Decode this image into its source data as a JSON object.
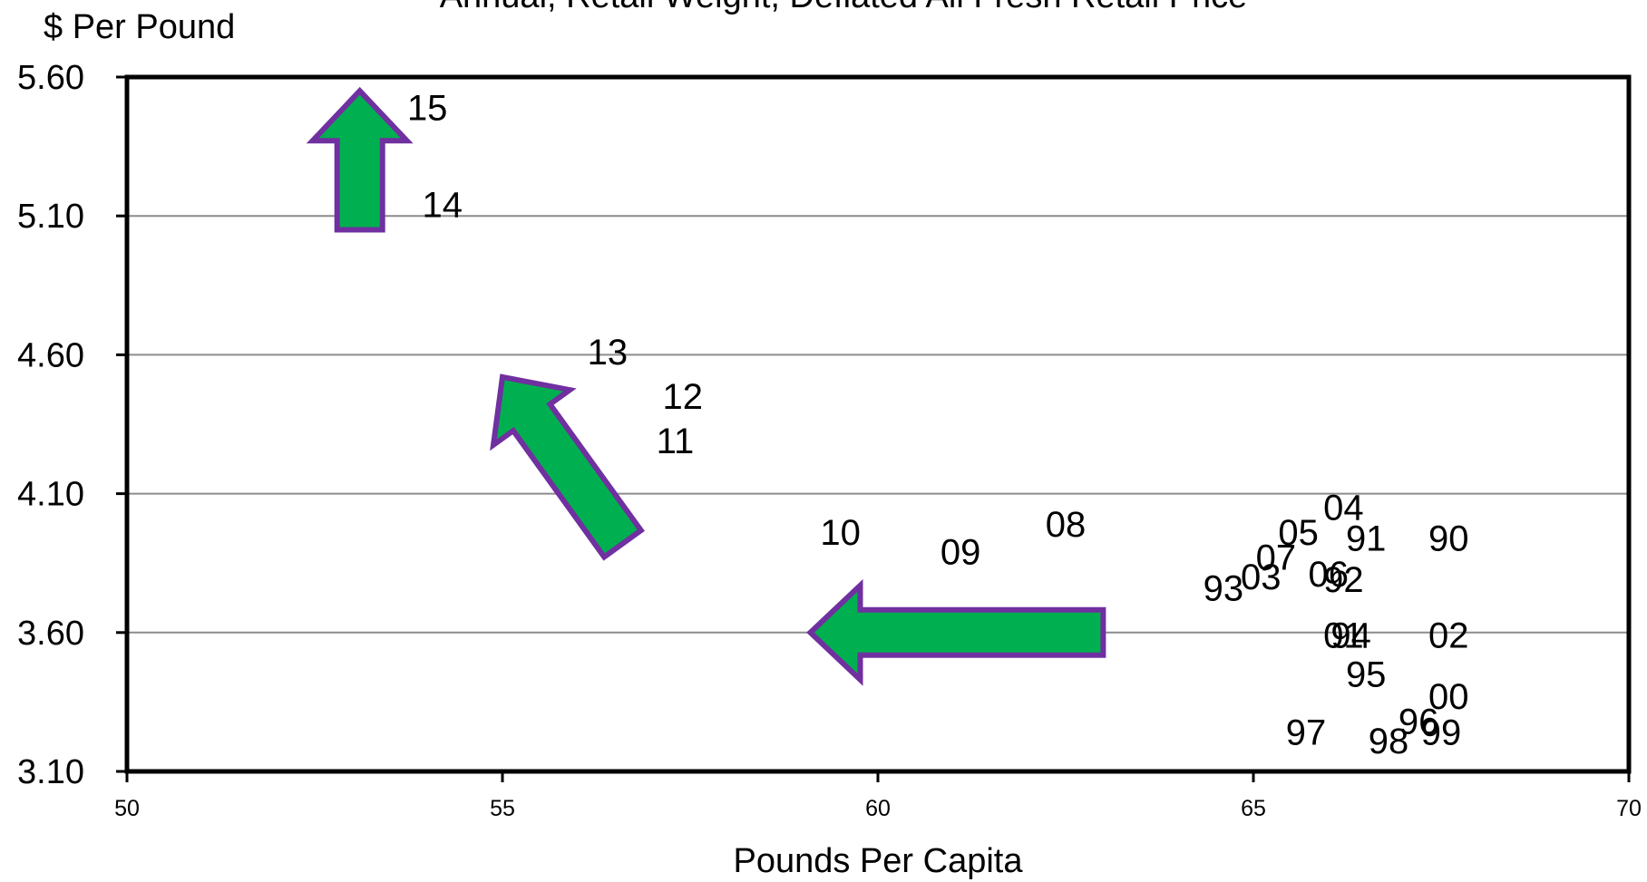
{
  "chart_data": {
    "type": "scatter",
    "title": "Annual, Retail Weight, Deflated All Fresh Retail Price",
    "xlabel": "Pounds Per Capita",
    "ylabel": "$ Per Pound",
    "xlim": [
      50,
      70
    ],
    "ylim": [
      3.1,
      5.6
    ],
    "x_ticks": [
      "50",
      "55",
      "60",
      "65",
      "70"
    ],
    "y_ticks": [
      "3.10",
      "3.60",
      "4.10",
      "4.60",
      "5.10",
      "5.60"
    ],
    "grid": "horizontal",
    "points": [
      {
        "label": "90",
        "x": 67.6,
        "y": 3.93
      },
      {
        "label": "91",
        "x": 66.5,
        "y": 3.93
      },
      {
        "label": "92",
        "x": 66.2,
        "y": 3.78
      },
      {
        "label": "93",
        "x": 64.6,
        "y": 3.75
      },
      {
        "label": "94",
        "x": 66.3,
        "y": 3.58
      },
      {
        "label": "95",
        "x": 66.5,
        "y": 3.44
      },
      {
        "label": "96",
        "x": 67.2,
        "y": 3.27
      },
      {
        "label": "97",
        "x": 65.7,
        "y": 3.23
      },
      {
        "label": "98",
        "x": 66.8,
        "y": 3.2
      },
      {
        "label": "99",
        "x": 67.5,
        "y": 3.23
      },
      {
        "label": "00",
        "x": 67.6,
        "y": 3.36
      },
      {
        "label": "01",
        "x": 66.2,
        "y": 3.58
      },
      {
        "label": "02",
        "x": 67.6,
        "y": 3.58
      },
      {
        "label": "03",
        "x": 65.1,
        "y": 3.79
      },
      {
        "label": "04",
        "x": 66.2,
        "y": 4.04
      },
      {
        "label": "05",
        "x": 65.6,
        "y": 3.95
      },
      {
        "label": "06",
        "x": 66.0,
        "y": 3.8
      },
      {
        "label": "07",
        "x": 65.3,
        "y": 3.86
      },
      {
        "label": "08",
        "x": 62.5,
        "y": 3.98
      },
      {
        "label": "09",
        "x": 61.1,
        "y": 3.88
      },
      {
        "label": "10",
        "x": 59.5,
        "y": 3.95
      },
      {
        "label": "11",
        "x": 57.3,
        "y": 4.28
      },
      {
        "label": "12",
        "x": 57.4,
        "y": 4.44
      },
      {
        "label": "13",
        "x": 56.4,
        "y": 4.6
      },
      {
        "label": "14",
        "x": 54.2,
        "y": 5.13
      },
      {
        "label": "15",
        "x": 54.0,
        "y": 5.48
      }
    ],
    "annotations": [
      {
        "type": "arrow",
        "from": [
          63.0,
          3.6
        ],
        "to": [
          59.1,
          3.6
        ],
        "color": "#00b050",
        "border": "#7030a0"
      },
      {
        "type": "arrow",
        "from": [
          56.6,
          3.92
        ],
        "to": [
          55.0,
          4.52
        ],
        "color": "#00b050",
        "border": "#7030a0"
      },
      {
        "type": "arrow",
        "from": [
          53.1,
          5.05
        ],
        "to": [
          53.1,
          5.55
        ],
        "color": "#00b050",
        "border": "#7030a0"
      }
    ]
  }
}
